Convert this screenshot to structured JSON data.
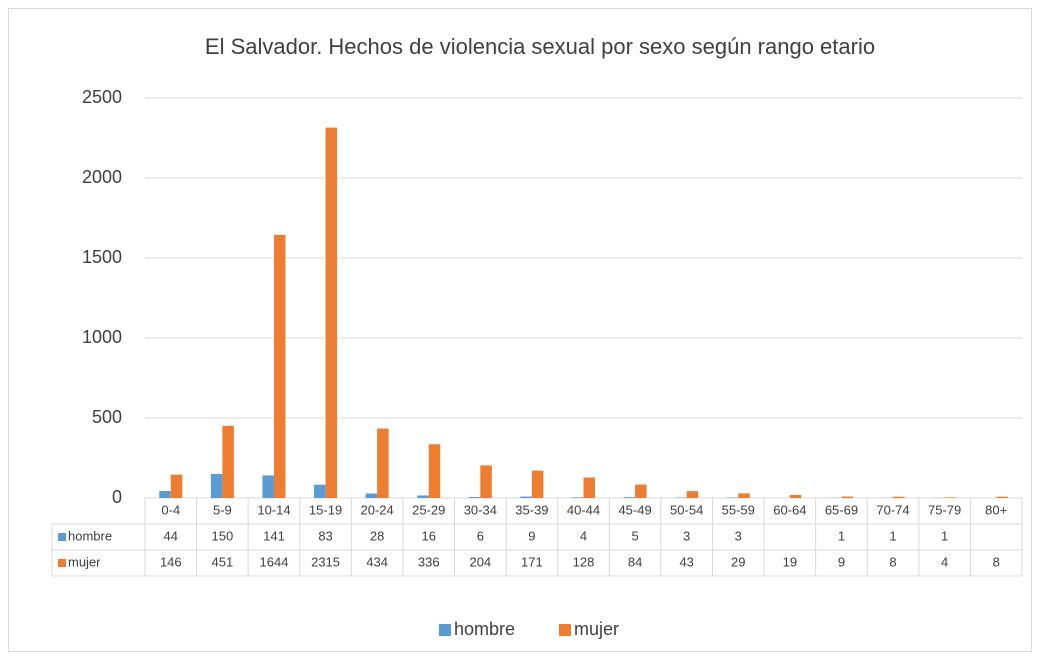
{
  "chart_data": {
    "type": "bar",
    "title": "El Salvador. Hechos de violencia sexual por sexo según rango etario",
    "categories": [
      "0-4",
      "5-9",
      "10-14",
      "15-19",
      "20-24",
      "25-29",
      "30-34",
      "35-39",
      "40-44",
      "45-49",
      "50-54",
      "55-59",
      "60-64",
      "65-69",
      "70-74",
      "75-79",
      "80+"
    ],
    "series": [
      {
        "name": "hombre",
        "color": "#5b9bd5",
        "values": [
          44,
          150,
          141,
          83,
          28,
          16,
          6,
          9,
          4,
          5,
          3,
          3,
          null,
          1,
          1,
          1,
          null
        ]
      },
      {
        "name": "mujer",
        "color": "#ed7d31",
        "values": [
          146,
          451,
          1644,
          2315,
          434,
          336,
          204,
          171,
          128,
          84,
          43,
          29,
          19,
          9,
          8,
          4,
          8
        ]
      }
    ],
    "ylim": [
      0,
      2500
    ],
    "yticks": [
      0,
      500,
      1000,
      1500,
      2000,
      2500
    ],
    "grid": true,
    "legend": "bottom"
  }
}
